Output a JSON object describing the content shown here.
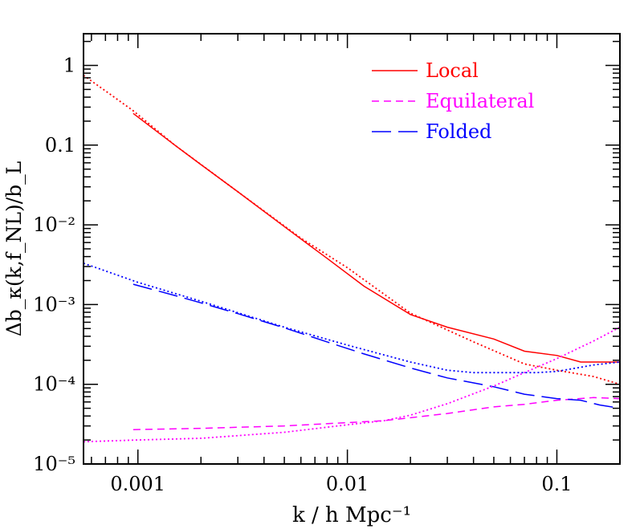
{
  "chart_data": {
    "type": "line",
    "xlabel": "k / h Mpc⁻¹",
    "ylabel": "Δb_κ(k,f_NL)/b_L",
    "xscale": "log",
    "yscale": "log",
    "xlim": [
      0.00055,
      0.2
    ],
    "ylim": [
      1e-05,
      2.5
    ],
    "xticks": [
      {
        "value": 0.001,
        "label": "0.001"
      },
      {
        "value": 0.01,
        "label": "0.01"
      },
      {
        "value": 0.1,
        "label": "0.1"
      }
    ],
    "yticks": [
      {
        "value": 1,
        "label": "1"
      },
      {
        "value": 0.1,
        "label": "0.1"
      },
      {
        "value": 0.01,
        "label": "10⁻²"
      },
      {
        "value": 0.001,
        "label": "10⁻³"
      },
      {
        "value": 0.0001,
        "label": "10⁻⁴"
      },
      {
        "value": 1e-05,
        "label": "10⁻⁵"
      }
    ],
    "legend_position": "top-right",
    "series": [
      {
        "name": "Local",
        "color": "#ff0000",
        "style": "solid",
        "legend": true,
        "x": [
          0.00095,
          0.0015,
          0.002,
          0.003,
          0.005,
          0.008,
          0.012,
          0.02,
          0.03,
          0.05,
          0.07,
          0.1,
          0.13,
          0.16,
          0.2
        ],
        "y": [
          0.25,
          0.1,
          0.057,
          0.026,
          0.0095,
          0.0038,
          0.0017,
          0.00075,
          0.00052,
          0.00037,
          0.00026,
          0.00023,
          0.00019,
          0.00019,
          0.00019
        ]
      },
      {
        "name": "Equilateral",
        "color": "#ff00ff",
        "style": "dash",
        "legend": true,
        "x": [
          0.00095,
          0.002,
          0.005,
          0.01,
          0.015,
          0.02,
          0.03,
          0.05,
          0.07,
          0.1,
          0.15,
          0.2
        ],
        "y": [
          2.7e-05,
          2.8e-05,
          3e-05,
          3.3e-05,
          3.5e-05,
          3.8e-05,
          4.3e-05,
          5.2e-05,
          5.6e-05,
          6.3e-05,
          6.8e-05,
          6.6e-05
        ]
      },
      {
        "name": "Folded",
        "color": "#0000ff",
        "style": "longdash",
        "legend": true,
        "x": [
          0.00095,
          0.0015,
          0.002,
          0.003,
          0.005,
          0.008,
          0.012,
          0.02,
          0.03,
          0.05,
          0.07,
          0.1,
          0.13,
          0.16,
          0.2
        ],
        "y": [
          0.0018,
          0.0013,
          0.00105,
          0.00077,
          0.00051,
          0.00034,
          0.00024,
          0.00016,
          0.00012,
          9.3e-05,
          7.5e-05,
          6.6e-05,
          6.3e-05,
          5.5e-05,
          5e-05
        ]
      },
      {
        "name": "",
        "color": "#ff0000",
        "style": "dot",
        "legend": false,
        "x": [
          0.00055,
          0.0007,
          0.00095,
          0.0015,
          0.003,
          0.006,
          0.01,
          0.02,
          0.04,
          0.07,
          0.1,
          0.15,
          0.2
        ],
        "y": [
          0.75,
          0.48,
          0.27,
          0.1,
          0.026,
          0.0068,
          0.0029,
          0.00078,
          0.00034,
          0.00018,
          0.00015,
          0.000125,
          0.0001
        ]
      },
      {
        "name": "",
        "color": "#ff00ff",
        "style": "dot",
        "legend": false,
        "x": [
          0.00055,
          0.001,
          0.002,
          0.005,
          0.01,
          0.015,
          0.02,
          0.03,
          0.05,
          0.07,
          0.1,
          0.15,
          0.2
        ],
        "y": [
          1.9e-05,
          2e-05,
          2.1e-05,
          2.5e-05,
          3.1e-05,
          3.5e-05,
          4.1e-05,
          5.7e-05,
          9.5e-05,
          0.00014,
          0.00021,
          0.00035,
          0.00052
        ]
      },
      {
        "name": "",
        "color": "#0000ff",
        "style": "dot",
        "legend": false,
        "x": [
          0.00055,
          0.001,
          0.002,
          0.005,
          0.01,
          0.02,
          0.03,
          0.04,
          0.06,
          0.08,
          0.1,
          0.15,
          0.2
        ],
        "y": [
          0.0033,
          0.0019,
          0.0011,
          0.00052,
          0.00031,
          0.00019,
          0.00015,
          0.00014,
          0.00014,
          0.00014,
          0.000145,
          0.000175,
          0.00019
        ]
      }
    ]
  }
}
